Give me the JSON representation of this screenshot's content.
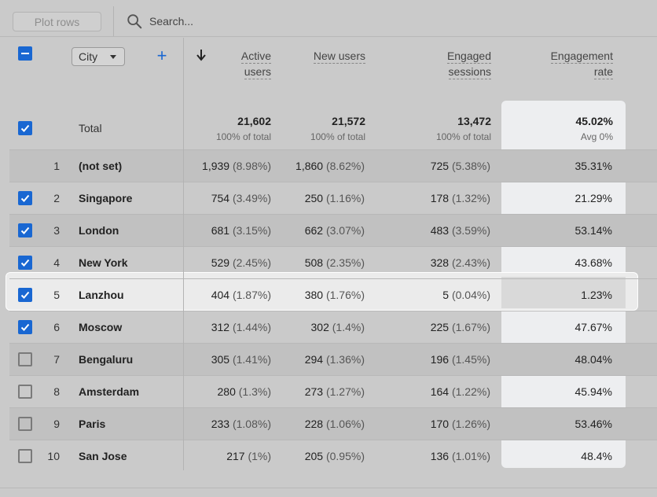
{
  "toolbar": {
    "plot_rows_label": "Plot rows",
    "search_placeholder": "Search..."
  },
  "dimension": {
    "label": "City",
    "add_label": "+"
  },
  "columns": [
    {
      "line1": "Active",
      "line2": "users"
    },
    {
      "line1": "New users",
      "line2": ""
    },
    {
      "line1": "Engaged",
      "line2": "sessions"
    },
    {
      "line1": "Engagement",
      "line2": "rate"
    }
  ],
  "totals": {
    "label": "Total",
    "values": [
      "21,602",
      "21,572",
      "13,472",
      "45.02%"
    ],
    "subs": [
      "100% of total",
      "100% of total",
      "100% of total",
      "Avg 0%"
    ]
  },
  "rows": [
    {
      "index": "1",
      "city": "(not set)",
      "checked": null,
      "active": "1,939",
      "active_pct": "(8.98%)",
      "new": "1,860",
      "new_pct": "(8.62%)",
      "engaged": "725",
      "engaged_pct": "(5.38%)",
      "rate": "35.31%"
    },
    {
      "index": "2",
      "city": "Singapore",
      "checked": true,
      "active": "754",
      "active_pct": "(3.49%)",
      "new": "250",
      "new_pct": "(1.16%)",
      "engaged": "178",
      "engaged_pct": "(1.32%)",
      "rate": "21.29%"
    },
    {
      "index": "3",
      "city": "London",
      "checked": true,
      "active": "681",
      "active_pct": "(3.15%)",
      "new": "662",
      "new_pct": "(3.07%)",
      "engaged": "483",
      "engaged_pct": "(3.59%)",
      "rate": "53.14%"
    },
    {
      "index": "4",
      "city": "New York",
      "checked": true,
      "active": "529",
      "active_pct": "(2.45%)",
      "new": "508",
      "new_pct": "(2.35%)",
      "engaged": "328",
      "engaged_pct": "(2.43%)",
      "rate": "43.68%"
    },
    {
      "index": "5",
      "city": "Lanzhou",
      "checked": true,
      "active": "404",
      "active_pct": "(1.87%)",
      "new": "380",
      "new_pct": "(1.76%)",
      "engaged": "5",
      "engaged_pct": "(0.04%)",
      "rate": "1.23%"
    },
    {
      "index": "6",
      "city": "Moscow",
      "checked": true,
      "active": "312",
      "active_pct": "(1.44%)",
      "new": "302",
      "new_pct": "(1.4%)",
      "engaged": "225",
      "engaged_pct": "(1.67%)",
      "rate": "47.67%"
    },
    {
      "index": "7",
      "city": "Bengaluru",
      "checked": false,
      "active": "305",
      "active_pct": "(1.41%)",
      "new": "294",
      "new_pct": "(1.36%)",
      "engaged": "196",
      "engaged_pct": "(1.45%)",
      "rate": "48.04%"
    },
    {
      "index": "8",
      "city": "Amsterdam",
      "checked": false,
      "active": "280",
      "active_pct": "(1.3%)",
      "new": "273",
      "new_pct": "(1.27%)",
      "engaged": "164",
      "engaged_pct": "(1.22%)",
      "rate": "45.94%"
    },
    {
      "index": "9",
      "city": "Paris",
      "checked": false,
      "active": "233",
      "active_pct": "(1.08%)",
      "new": "228",
      "new_pct": "(1.06%)",
      "engaged": "170",
      "engaged_pct": "(1.26%)",
      "rate": "53.46%"
    },
    {
      "index": "10",
      "city": "San Jose",
      "checked": false,
      "active": "217",
      "active_pct": "(1%)",
      "new": "205",
      "new_pct": "(0.95%)",
      "engaged": "136",
      "engaged_pct": "(1.01%)",
      "rate": "48.4%"
    }
  ],
  "icons": {
    "search": "search-icon",
    "sort": "arrow-down-icon",
    "checkbox": "checkbox-icon",
    "dropdown": "chevron-down-icon"
  },
  "colors": {
    "accent": "#1967d2",
    "background": "#cacaca"
  }
}
